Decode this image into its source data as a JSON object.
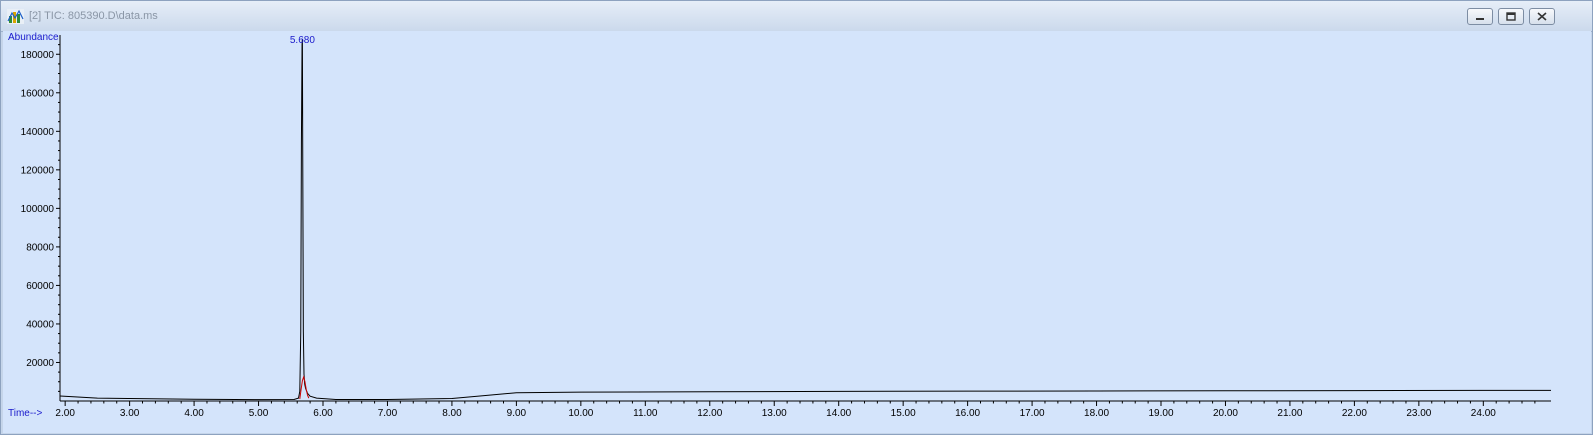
{
  "window": {
    "title": "[2] TIC: 805390.D\\data.ms",
    "icon": "chromatogram-app-icon",
    "controls": [
      "minimize-icon",
      "restore-icon",
      "close-icon"
    ]
  },
  "chart_data": {
    "type": "line",
    "ylabel": "Abundance",
    "xlabel": "Time-->",
    "xlim": [
      1.92,
      25.05
    ],
    "ylim": [
      0,
      190000
    ],
    "x_ticks": [
      2.0,
      3.0,
      4.0,
      5.0,
      6.0,
      7.0,
      8.0,
      9.0,
      10.0,
      11.0,
      12.0,
      13.0,
      14.0,
      15.0,
      16.0,
      17.0,
      18.0,
      19.0,
      20.0,
      21.0,
      22.0,
      23.0,
      24.0
    ],
    "x_tick_labels": [
      "2.00",
      "3.00",
      "4.00",
      "5.00",
      "6.00",
      "7.00",
      "8.00",
      "9.00",
      "10.00",
      "11.00",
      "12.00",
      "13.00",
      "14.00",
      "15.00",
      "16.00",
      "17.00",
      "18.00",
      "19.00",
      "20.00",
      "21.00",
      "22.00",
      "23.00",
      "24.00"
    ],
    "y_ticks": [
      20000,
      40000,
      60000,
      80000,
      100000,
      120000,
      140000,
      160000,
      180000
    ],
    "y_tick_labels": [
      "20000",
      "40000",
      "60000",
      "80000",
      "100000",
      "120000",
      "140000",
      "160000",
      "180000"
    ],
    "peak_label": {
      "text": "5.680",
      "x": 5.68
    },
    "series": [
      {
        "color": "#000000",
        "x": [
          1.92,
          2.5,
          3.0,
          4.0,
          5.0,
          5.55,
          5.62,
          5.64,
          5.655,
          5.665,
          5.675,
          5.68,
          5.685,
          5.695,
          5.705,
          5.715,
          5.73,
          5.76,
          5.8,
          5.9,
          6.2,
          7.0,
          8.0,
          8.5,
          9.0,
          10.0,
          12.0,
          14.0,
          16.0,
          18.0,
          20.0,
          22.0,
          24.0,
          25.05
        ],
        "y": [
          2600,
          1500,
          1300,
          900,
          700,
          800,
          1500,
          5000,
          36000,
          134000,
          185000,
          188000,
          134000,
          36000,
          14000,
          9000,
          6500,
          4000,
          2500,
          1500,
          800,
          800,
          1300,
          2800,
          4300,
          4600,
          4800,
          5000,
          5100,
          5200,
          5300,
          5400,
          5500,
          5500
        ]
      },
      {
        "color": "#cc0000",
        "x": [
          5.64,
          5.66,
          5.68,
          5.7,
          5.72,
          5.74,
          5.76,
          5.78
        ],
        "y": [
          1000,
          6000,
          10500,
          12500,
          10000,
          6000,
          3000,
          1500
        ]
      }
    ],
    "grid": false,
    "legend": "none"
  }
}
